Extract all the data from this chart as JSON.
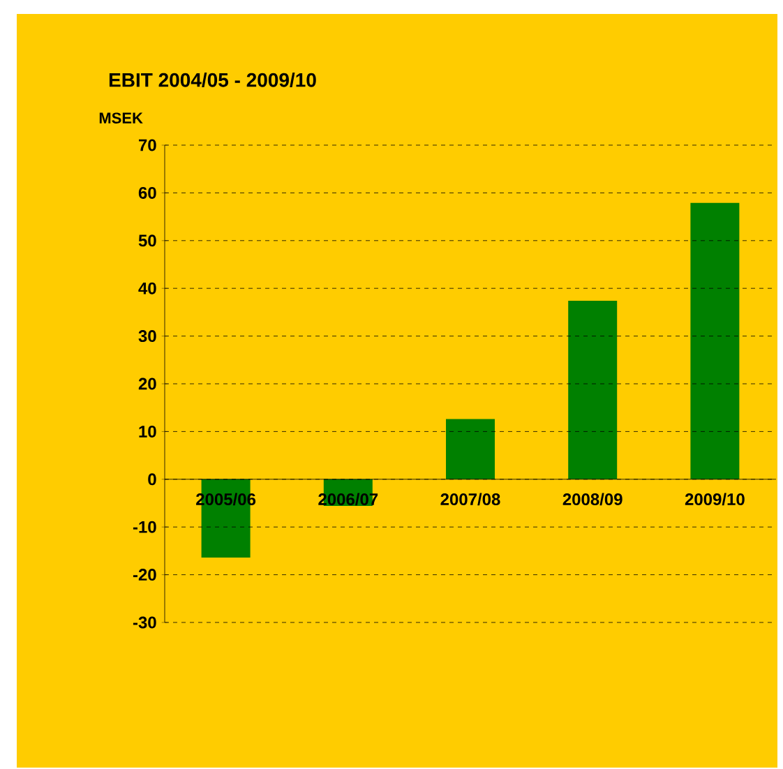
{
  "chart_data": {
    "type": "bar",
    "title": "EBIT 2004/05  - 2009/10",
    "ylabel": "MSEK",
    "categories": [
      "2005/06",
      "2006/07",
      "2007/08",
      "2008/09",
      "2009/10"
    ],
    "values": [
      -16.4,
      -5.6,
      12.6,
      37.4,
      57.9
    ],
    "color": "#008000",
    "ylim": [
      -30,
      70
    ],
    "yticks": [
      -30,
      -20,
      -10,
      0,
      10,
      20,
      30,
      40,
      50,
      60,
      70
    ],
    "grid": "y"
  }
}
